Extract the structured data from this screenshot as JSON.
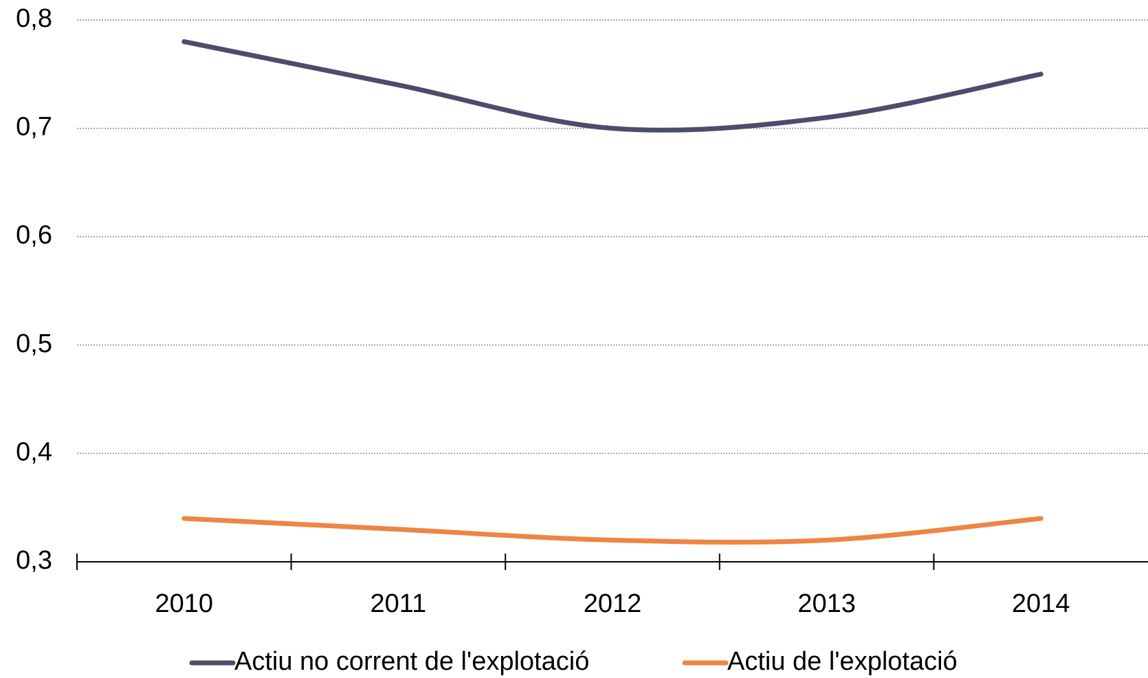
{
  "chart_data": {
    "type": "line",
    "categories": [
      "2010",
      "2011",
      "2012",
      "2013",
      "2014"
    ],
    "series": [
      {
        "name": "Actiu no corrent de l'explotació",
        "color": "#4a4d6b",
        "values": [
          0.78,
          0.74,
          0.7,
          0.71,
          0.75
        ]
      },
      {
        "name": "Actiu de l'explotació",
        "color": "#ee8544",
        "values": [
          0.34,
          0.33,
          0.32,
          0.32,
          0.34
        ]
      }
    ],
    "ylim": [
      0.3,
      0.8
    ],
    "yticks": [
      {
        "value": 0.3,
        "label": "0,3"
      },
      {
        "value": 0.4,
        "label": "0,4"
      },
      {
        "value": 0.5,
        "label": "0,5"
      },
      {
        "value": 0.6,
        "label": "0,6"
      },
      {
        "value": 0.7,
        "label": "0,7"
      },
      {
        "value": 0.8,
        "label": "0,8"
      }
    ],
    "grid": true,
    "smooth": true,
    "legend": "bottom"
  }
}
